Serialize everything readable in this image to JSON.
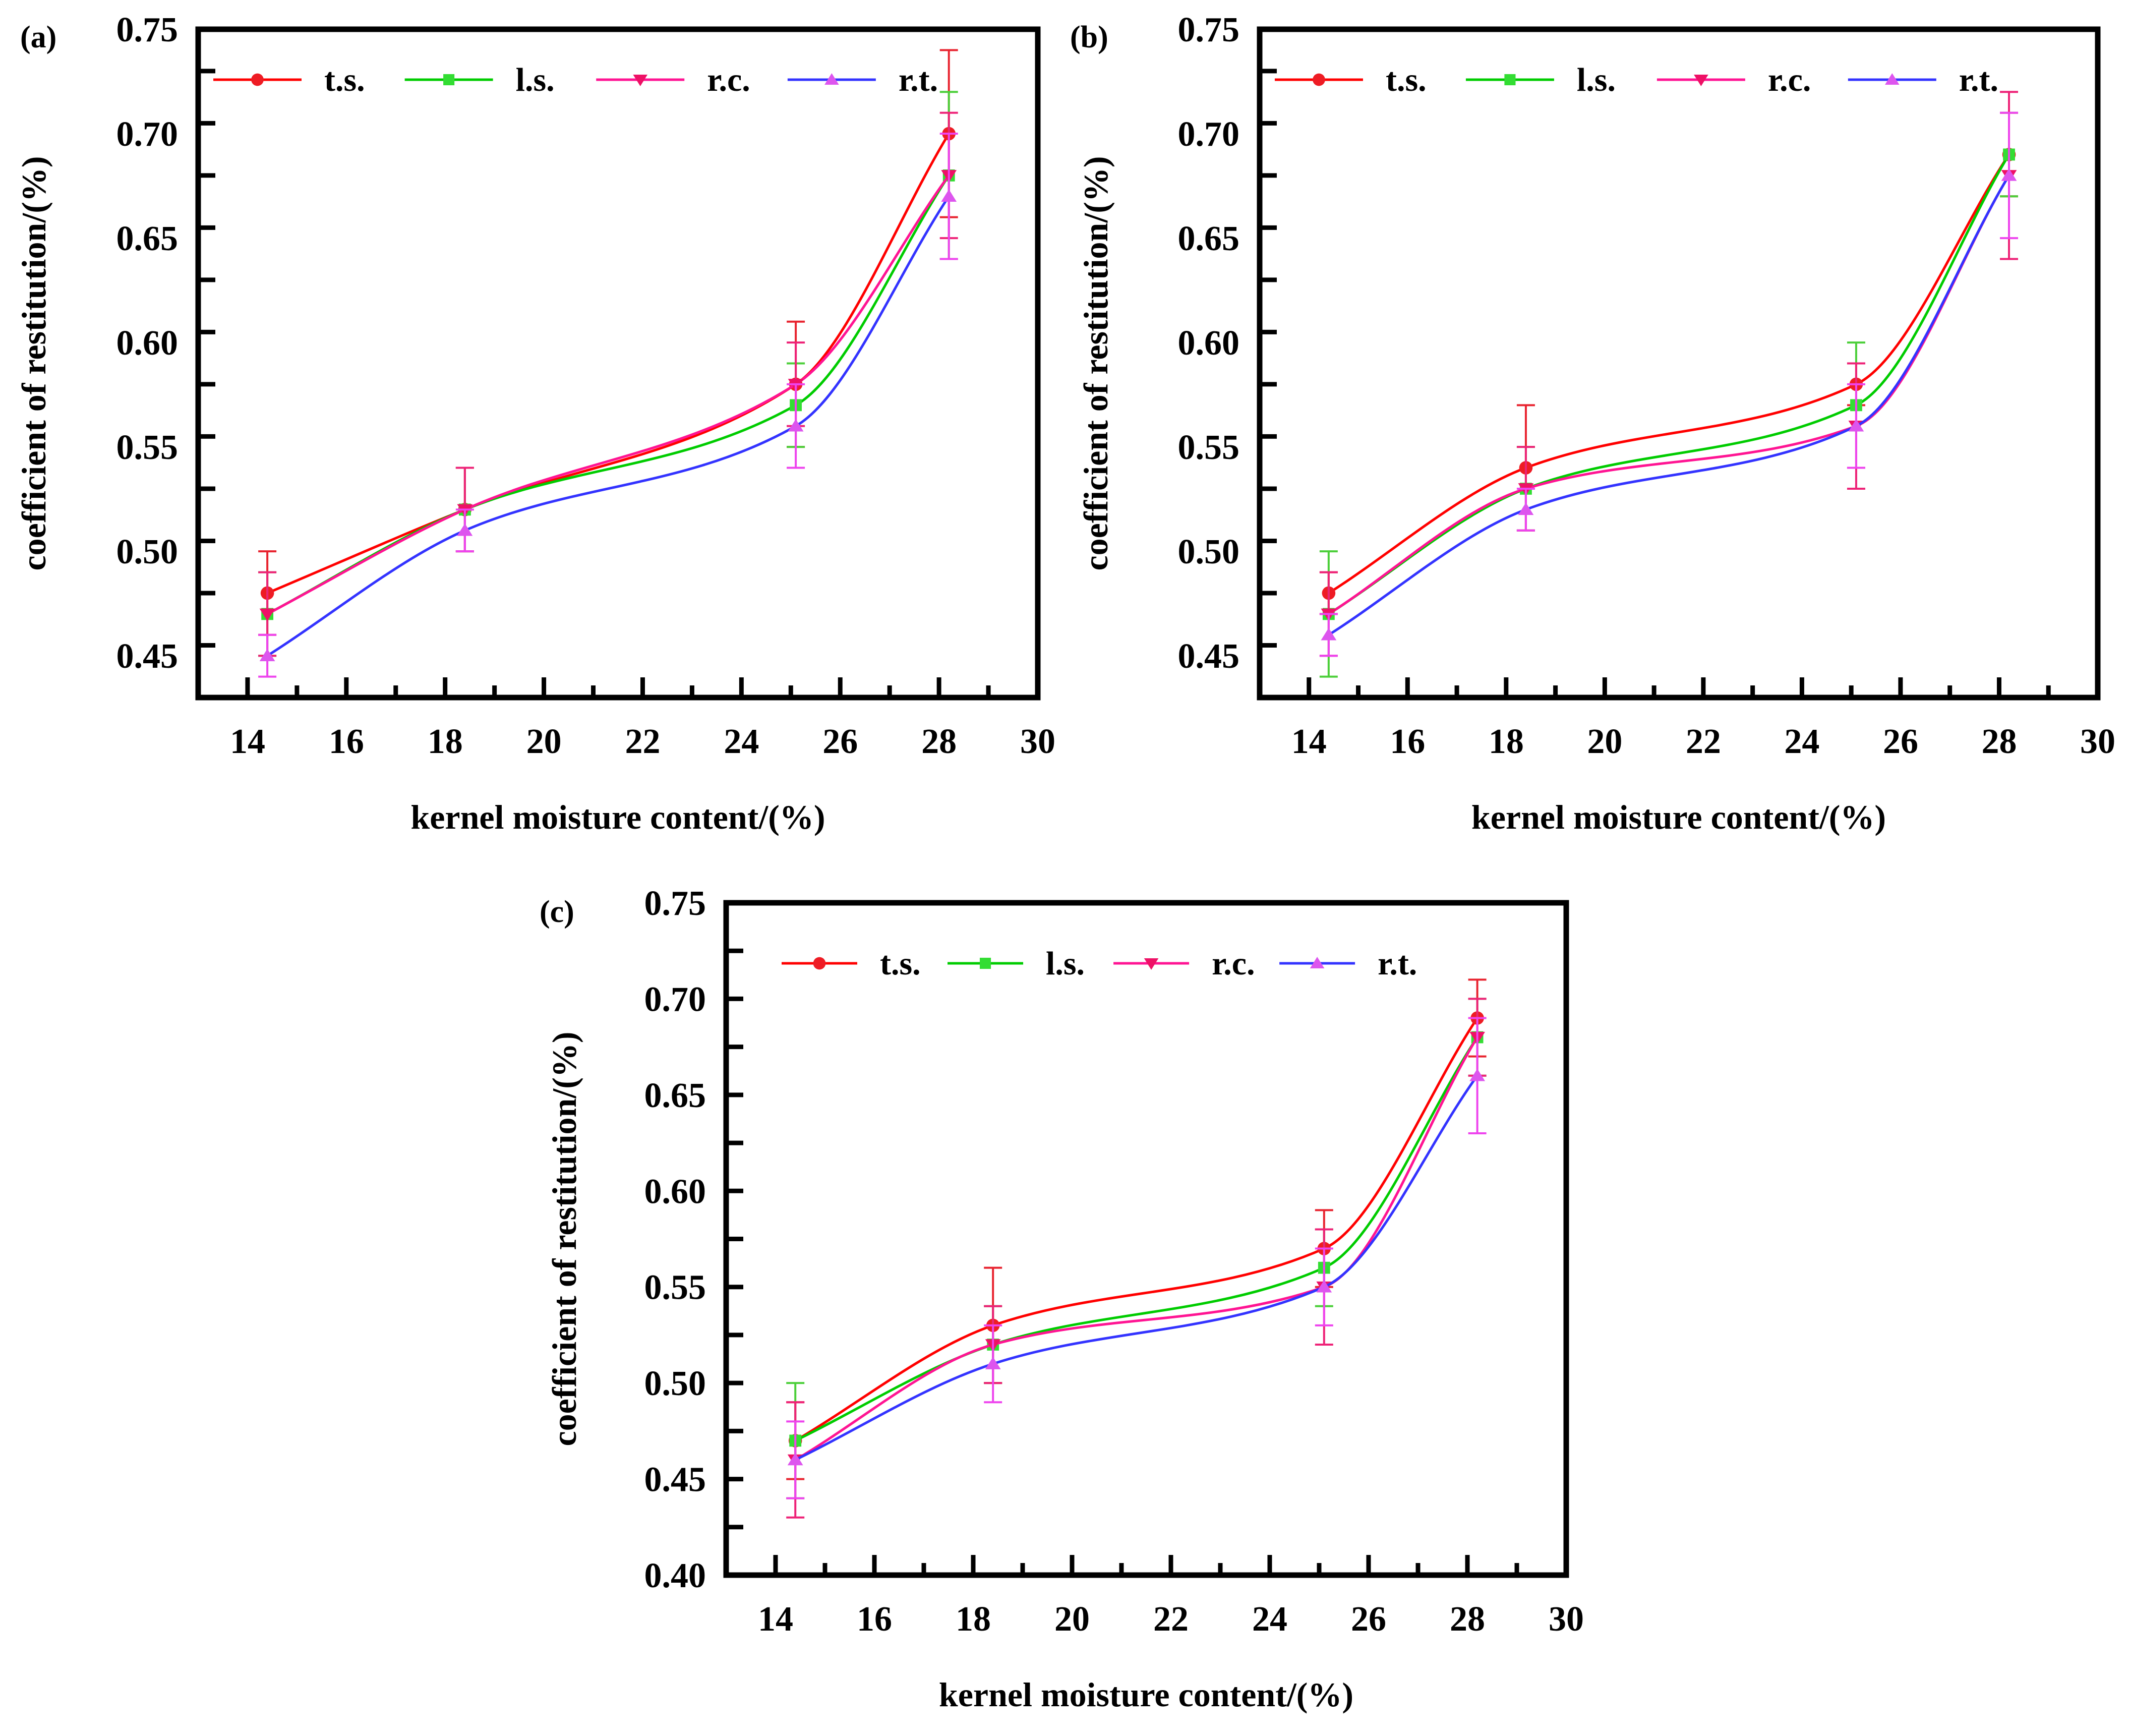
{
  "figure": {
    "panels": [
      "a",
      "b",
      "c"
    ]
  },
  "legend_labels": [
    "t.s.",
    "l.s.",
    "r.c.",
    "r.t."
  ],
  "series_colors": {
    "t.s.": "#ff0000",
    "l.s.": "#00cc00",
    "r.c.": "#ff1493",
    "r.t.": "#3333ff"
  },
  "marker_colors": {
    "t.s.": "#ee1c24",
    "l.s.": "#33dd33",
    "r.c.": "#ee1166",
    "r.t.": "#dd55ee"
  },
  "error_colors": {
    "t.s.": "#e8232f",
    "l.s.": "#4ccf3a",
    "r.c.": "#ee2277",
    "r.t.": "#ee44ee"
  },
  "chart_data": [
    {
      "type": "line",
      "panel_label": "(a)",
      "xlabel": "kernel moisture content/(%)",
      "ylabel": "coefficient of restitution/(%)",
      "xlim": [
        13,
        30
      ],
      "ylim": [
        0.43,
        0.75
      ],
      "xticks": [
        14,
        16,
        18,
        20,
        22,
        24,
        26,
        28,
        30
      ],
      "xtick_labels": [
        "14",
        "16",
        "18",
        "20",
        "22",
        "24",
        "26",
        "28",
        "30"
      ],
      "yticks": [
        0.45,
        0.5,
        0.55,
        0.6,
        0.65,
        0.7,
        0.75
      ],
      "ytick_labels": [
        "0.45",
        "0.50",
        "0.55",
        "0.60",
        "0.65",
        "0.70",
        "0.75"
      ],
      "x": [
        14.4,
        18.4,
        25.1,
        28.2
      ],
      "series": [
        {
          "name": "t.s.",
          "marker": "circle",
          "values": [
            0.48,
            0.52,
            0.58,
            0.7
          ],
          "errors": [
            0.02,
            0.02,
            0.03,
            0.04
          ]
        },
        {
          "name": "l.s.",
          "marker": "square",
          "values": [
            0.47,
            0.52,
            0.57,
            0.68
          ],
          "errors": [
            0.02,
            0.02,
            0.02,
            0.04
          ]
        },
        {
          "name": "r.c.",
          "marker": "triangle-down",
          "values": [
            0.47,
            0.52,
            0.58,
            0.68
          ],
          "errors": [
            0.02,
            0.02,
            0.02,
            0.03
          ]
        },
        {
          "name": "r.t.",
          "marker": "triangle-up",
          "values": [
            0.45,
            0.51,
            0.56,
            0.67
          ],
          "errors": [
            0.01,
            0.01,
            0.02,
            0.03
          ]
        }
      ]
    },
    {
      "type": "line",
      "panel_label": "(b)",
      "xlabel": "kernel moisture content/(%)",
      "ylabel": "coefficient of restitution/(%)",
      "xlim": [
        13,
        30
      ],
      "ylim": [
        0.43,
        0.75
      ],
      "xticks": [
        14,
        16,
        18,
        20,
        22,
        24,
        26,
        28,
        30
      ],
      "xtick_labels": [
        "14",
        "16",
        "18",
        "20",
        "22",
        "24",
        "26",
        "28",
        "30"
      ],
      "yticks": [
        0.45,
        0.5,
        0.55,
        0.6,
        0.65,
        0.7,
        0.75
      ],
      "ytick_labels": [
        "0.45",
        "0.50",
        "0.55",
        "0.60",
        "0.65",
        "0.70",
        "0.75"
      ],
      "x": [
        14.4,
        18.4,
        25.1,
        28.2
      ],
      "series": [
        {
          "name": "t.s.",
          "marker": "circle",
          "values": [
            0.48,
            0.54,
            0.58,
            0.69
          ],
          "errors": [
            0.01,
            0.03,
            0.01,
            0.02
          ]
        },
        {
          "name": "l.s.",
          "marker": "square",
          "values": [
            0.47,
            0.53,
            0.57,
            0.69
          ],
          "errors": [
            0.03,
            0.02,
            0.03,
            0.02
          ]
        },
        {
          "name": "r.c.",
          "marker": "triangle-down",
          "values": [
            0.47,
            0.53,
            0.56,
            0.68
          ],
          "errors": [
            0.02,
            0.02,
            0.03,
            0.04
          ]
        },
        {
          "name": "r.t.",
          "marker": "triangle-up",
          "values": [
            0.46,
            0.52,
            0.56,
            0.68
          ],
          "errors": [
            0.01,
            0.01,
            0.02,
            0.03
          ]
        }
      ]
    },
    {
      "type": "line",
      "panel_label": "(c)",
      "xlabel": "kernel moisture content/(%)",
      "ylabel": "coefficient of restitution/(%)",
      "xlim": [
        13,
        30
      ],
      "ylim": [
        0.4,
        0.75
      ],
      "xticks": [
        14,
        16,
        18,
        20,
        22,
        24,
        26,
        28,
        30
      ],
      "xtick_labels": [
        "14",
        "16",
        "18",
        "20",
        "22",
        "24",
        "26",
        "28",
        "30"
      ],
      "yticks": [
        0.4,
        0.45,
        0.5,
        0.55,
        0.6,
        0.65,
        0.7,
        0.75
      ],
      "ytick_labels": [
        "0.40",
        "0.45",
        "0.50",
        "0.55",
        "0.60",
        "0.65",
        "0.70",
        "0.75"
      ],
      "x": [
        14.4,
        18.4,
        25.1,
        28.2
      ],
      "series": [
        {
          "name": "t.s.",
          "marker": "circle",
          "values": [
            0.47,
            0.53,
            0.57,
            0.69
          ],
          "errors": [
            0.02,
            0.03,
            0.02,
            0.02
          ]
        },
        {
          "name": "l.s.",
          "marker": "square",
          "values": [
            0.47,
            0.52,
            0.56,
            0.68
          ],
          "errors": [
            0.03,
            0.02,
            0.02,
            0.02
          ]
        },
        {
          "name": "r.c.",
          "marker": "triangle-down",
          "values": [
            0.46,
            0.52,
            0.55,
            0.68
          ],
          "errors": [
            0.03,
            0.02,
            0.03,
            0.02
          ]
        },
        {
          "name": "r.t.",
          "marker": "triangle-up",
          "values": [
            0.46,
            0.51,
            0.55,
            0.66
          ],
          "errors": [
            0.02,
            0.02,
            0.02,
            0.03
          ]
        }
      ]
    }
  ]
}
